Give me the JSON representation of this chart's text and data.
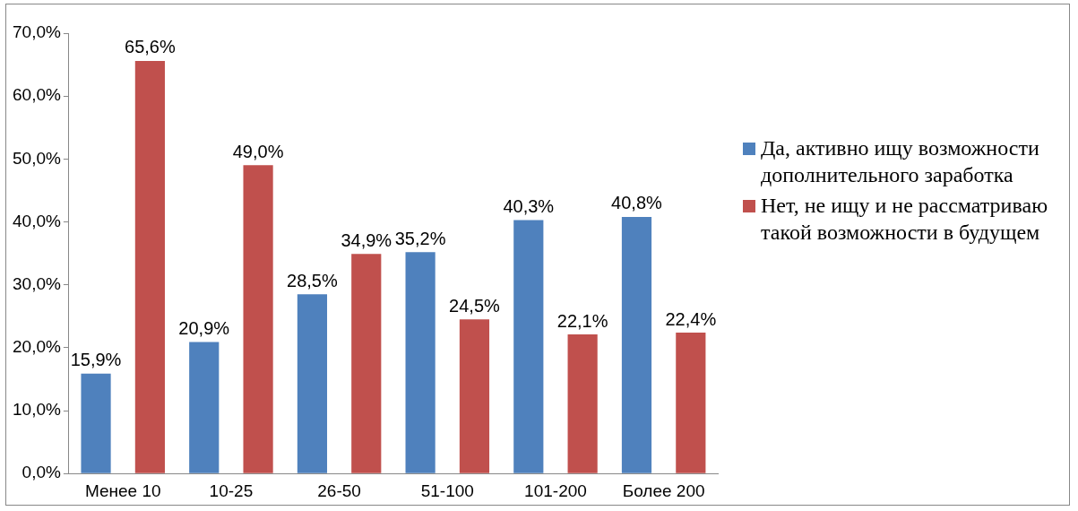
{
  "chart_data": {
    "type": "bar",
    "categories": [
      "Менее 10",
      "10-25",
      "26-50",
      "51-100",
      "101-200",
      "Более 200"
    ],
    "series": [
      {
        "name": "Да, активно ищу возможности дополнительного заработка",
        "color": "#4f81bd",
        "values": [
          15.9,
          20.9,
          28.5,
          35.2,
          40.3,
          40.8
        ],
        "value_labels": [
          "15,9%",
          "20,9%",
          "28,5%",
          "35,2%",
          "40,3%",
          "40,8%"
        ]
      },
      {
        "name": "Нет, не ищу и не рассматриваю такой возможности в будущем",
        "color": "#c0504d",
        "values": [
          65.6,
          49.0,
          34.9,
          24.5,
          22.1,
          22.4
        ],
        "value_labels": [
          "65,6%",
          "49,0%",
          "34,9%",
          "24,5%",
          "22,1%",
          "22,4%"
        ]
      }
    ],
    "ylim": [
      0,
      70
    ],
    "yticks": [
      {
        "value": 0,
        "label": "0,0%"
      },
      {
        "value": 10,
        "label": "10,0%"
      },
      {
        "value": 20,
        "label": "20,0%"
      },
      {
        "value": 30,
        "label": "30,0%"
      },
      {
        "value": 40,
        "label": "40,0%"
      },
      {
        "value": 50,
        "label": "50,0%"
      },
      {
        "value": 60,
        "label": "60,0%"
      },
      {
        "value": 70,
        "label": "70,0%"
      }
    ],
    "grid": false,
    "legend": "right"
  }
}
